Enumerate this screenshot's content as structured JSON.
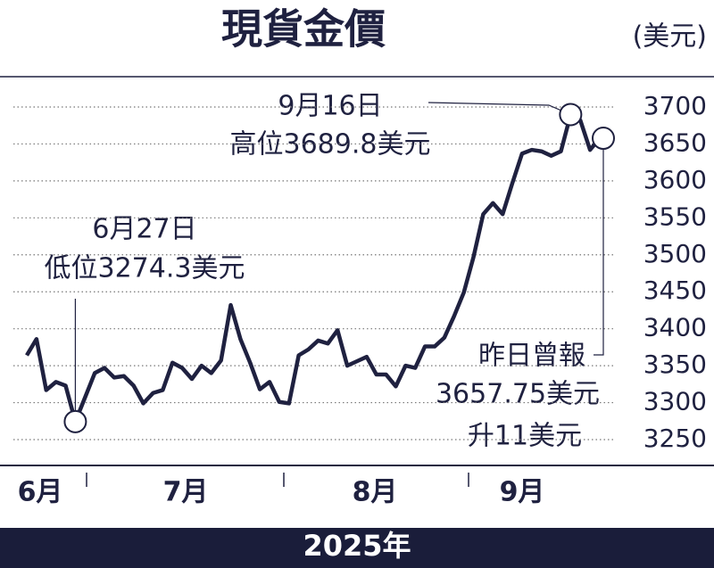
{
  "chart_data": {
    "type": "line",
    "title": "現貨金價",
    "unit": "(美元)",
    "year_label": "2025年",
    "months": [
      "6月",
      "7月",
      "8月",
      "9月"
    ],
    "annotations": {
      "high_date": "9月16日",
      "high_text": "高位3689.8美元",
      "low_date": "6月27日",
      "low_text": "低位3274.3美元",
      "last_title": "昨日曾報",
      "last_value": "3657.75美元",
      "last_change": "升11美元"
    },
    "series": [
      {
        "name": "現貨金價",
        "color": "#1f2140",
        "values": [
          3364,
          3386,
          3317,
          3328,
          3323,
          3274.3,
          3307,
          3340,
          3347,
          3334,
          3336,
          3323,
          3299,
          3313,
          3317,
          3354,
          3347,
          3332,
          3350,
          3340,
          3357,
          3432,
          3386,
          3354,
          3318,
          3328,
          3301,
          3299,
          3364,
          3372,
          3384,
          3380,
          3398,
          3350,
          3356,
          3362,
          3338,
          3338,
          3322,
          3350,
          3347,
          3376,
          3376,
          3388,
          3417,
          3449,
          3497,
          3555,
          3570,
          3555,
          3597,
          3637,
          3642,
          3640,
          3634,
          3640,
          3689.8,
          3682,
          3642,
          3657.75
        ]
      }
    ],
    "ylim": [
      3250,
      3700
    ],
    "yticks": [
      3250,
      3300,
      3350,
      3400,
      3450,
      3500,
      3550,
      3600,
      3650,
      3700
    ],
    "grid": true
  }
}
